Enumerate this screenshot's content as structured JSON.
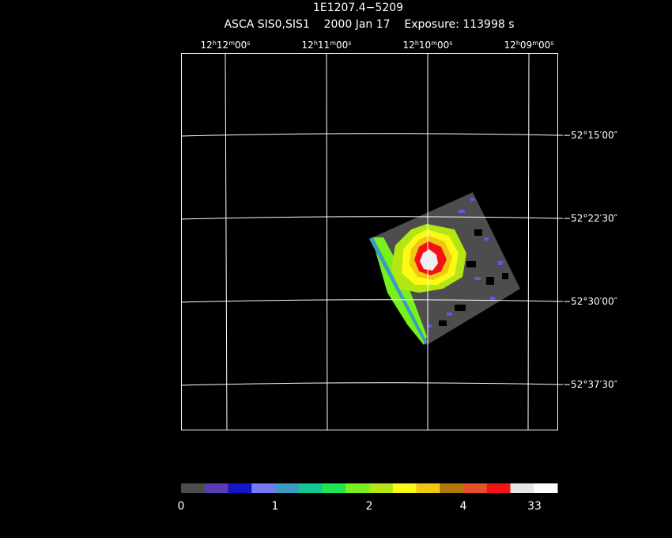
{
  "header": {
    "title": "1E1207.4−5209",
    "subtitle": "ASCA SIS0,SIS1    2000 Jan 17    Exposure: 113998 s"
  },
  "ra_labels": [
    [
      "12",
      "h",
      "12",
      "m",
      "00",
      "s"
    ],
    [
      "12",
      "h",
      "11",
      "m",
      "00",
      "s"
    ],
    [
      "12",
      "h",
      "10",
      "m",
      "00",
      "s"
    ],
    [
      "12",
      "h",
      "09",
      "m",
      "00",
      "s"
    ]
  ],
  "dec_labels": [
    "−52°15′00″",
    "−52°22′30″",
    "−52°30′00″",
    "−52°37′30″"
  ],
  "colorbar": {
    "colors": [
      "#4d4d4d",
      "#5a3cb4",
      "#1414c8",
      "#7878f0",
      "#3c9cc0",
      "#14c896",
      "#1ee650",
      "#78f01e",
      "#b4e614",
      "#fafa14",
      "#f0c814",
      "#b4780a",
      "#e65028",
      "#f01414",
      "#e6e6e6",
      "#ffffff"
    ],
    "labels": [
      "0",
      "1",
      "2",
      "4",
      "33"
    ]
  }
}
